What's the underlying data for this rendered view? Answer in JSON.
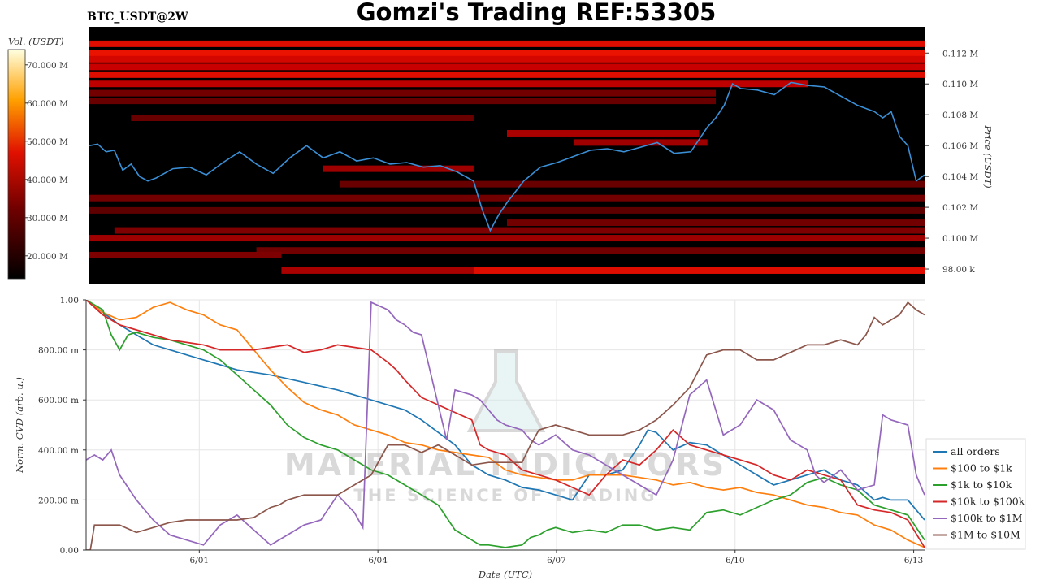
{
  "header": {
    "pair": "BTC_USDT@2W",
    "title": "Gomzi's Trading REF:53305"
  },
  "watermark": {
    "brand": "MATERIAL INDICATORS",
    "tagline": "THE SCIENCE OF TRADING"
  },
  "chart_data": [
    {
      "type": "heatmap",
      "name": "orderbook",
      "ylabel": "Price (USDT)",
      "ylim": [
        97000,
        113700
      ],
      "yticks": [
        98000,
        100000,
        102000,
        104000,
        106000,
        108000,
        110000,
        112000
      ],
      "ytick_labels": [
        "98.00 k",
        "0.100 M",
        "0.102 M",
        "0.104 M",
        "0.106 M",
        "0.108 M",
        "0.110 M",
        "0.112 M"
      ],
      "colorbar": {
        "label": "Vol. (USDT)",
        "range": [
          14000000,
          74000000
        ],
        "ticks": [
          20000000,
          30000000,
          40000000,
          50000000,
          60000000,
          70000000
        ],
        "tick_labels": [
          "20.000 M",
          "30.000 M",
          "40.000 M",
          "50.000 M",
          "60.000 M",
          "70.000 M"
        ]
      },
      "bands": [
        {
          "price": 112600,
          "t0": 0,
          "t1": 1,
          "intensity": 0.85
        },
        {
          "price": 112000,
          "t0": 0,
          "t1": 1,
          "intensity": 0.9
        },
        {
          "price": 111600,
          "t0": 0,
          "t1": 1,
          "intensity": 0.8
        },
        {
          "price": 111100,
          "t0": 0,
          "t1": 1,
          "intensity": 0.75
        },
        {
          "price": 110600,
          "t0": 0,
          "t1": 1,
          "intensity": 0.85
        },
        {
          "price": 110000,
          "t0": 0,
          "t1": 0.86,
          "intensity": 0.7
        },
        {
          "price": 109400,
          "t0": 0,
          "t1": 0.75,
          "intensity": 0.35
        },
        {
          "price": 108900,
          "t0": 0,
          "t1": 0.75,
          "intensity": 0.3
        },
        {
          "price": 107800,
          "t0": 0.05,
          "t1": 0.46,
          "intensity": 0.3
        },
        {
          "price": 106800,
          "t0": 0.5,
          "t1": 0.73,
          "intensity": 0.6
        },
        {
          "price": 106200,
          "t0": 0.58,
          "t1": 0.74,
          "intensity": 0.55
        },
        {
          "price": 104500,
          "t0": 0.28,
          "t1": 0.46,
          "intensity": 0.55
        },
        {
          "price": 103500,
          "t0": 0.3,
          "t1": 1,
          "intensity": 0.3
        },
        {
          "price": 102600,
          "t0": 0,
          "t1": 1,
          "intensity": 0.35
        },
        {
          "price": 101800,
          "t0": 0,
          "t1": 1,
          "intensity": 0.25
        },
        {
          "price": 101000,
          "t0": 0.5,
          "t1": 1,
          "intensity": 0.35
        },
        {
          "price": 100500,
          "t0": 0.03,
          "t1": 1,
          "intensity": 0.4
        },
        {
          "price": 100000,
          "t0": 0,
          "t1": 1,
          "intensity": 0.55
        },
        {
          "price": 99200,
          "t0": 0.2,
          "t1": 1,
          "intensity": 0.35
        },
        {
          "price": 98900,
          "t0": 0,
          "t1": 0.23,
          "intensity": 0.4
        },
        {
          "price": 97900,
          "t0": 0.23,
          "t1": 1,
          "intensity": 0.6
        },
        {
          "price": 97900,
          "t0": 0.46,
          "t1": 1,
          "intensity": 0.85
        }
      ],
      "price_series": {
        "name": "price",
        "t": [
          0,
          0.01,
          0.02,
          0.03,
          0.04,
          0.05,
          0.06,
          0.07,
          0.08,
          0.1,
          0.12,
          0.14,
          0.16,
          0.18,
          0.2,
          0.22,
          0.24,
          0.26,
          0.28,
          0.3,
          0.32,
          0.34,
          0.36,
          0.38,
          0.4,
          0.42,
          0.44,
          0.46,
          0.47,
          0.48,
          0.49,
          0.5,
          0.52,
          0.54,
          0.56,
          0.58,
          0.6,
          0.62,
          0.64,
          0.66,
          0.68,
          0.7,
          0.72,
          0.74,
          0.75,
          0.76,
          0.77,
          0.78,
          0.8,
          0.82,
          0.84,
          0.86,
          0.88,
          0.9,
          0.92,
          0.94,
          0.95,
          0.96,
          0.97,
          0.98,
          0.99,
          1.0
        ],
        "price": [
          106000,
          106100,
          105600,
          105700,
          104400,
          104800,
          104000,
          103700,
          103900,
          104500,
          104600,
          104100,
          104900,
          105600,
          104800,
          104200,
          105200,
          106000,
          105200,
          105600,
          105000,
          105200,
          104800,
          104900,
          104600,
          104700,
          104300,
          103700,
          101900,
          100500,
          101500,
          102300,
          103700,
          104600,
          104900,
          105300,
          105700,
          105800,
          105600,
          105900,
          106200,
          105500,
          105600,
          107200,
          107800,
          108600,
          110000,
          109700,
          109600,
          109300,
          110100,
          109900,
          109800,
          109200,
          108600,
          108200,
          107800,
          108200,
          106600,
          106000,
          103700,
          104100
        ]
      }
    },
    {
      "type": "line",
      "name": "cvd",
      "xlabel": "Date (UTC)",
      "ylabel": "Norm. CVD (arb. u.)",
      "xlim": [
        0,
        1
      ],
      "ylim": [
        0,
        1
      ],
      "xticks": [
        0.135,
        0.348,
        0.561,
        0.774,
        0.987
      ],
      "xtick_labels": [
        "6/01",
        "6/04",
        "6/07",
        "6/10",
        "6/13"
      ],
      "yticks": [
        0,
        0.2,
        0.4,
        0.6,
        0.8,
        1.0
      ],
      "ytick_labels": [
        "0.00",
        "200.00 m",
        "400.00 m",
        "600.00 m",
        "800.00 m",
        "1.00"
      ],
      "legend_position": "right",
      "series": [
        {
          "name": "all orders",
          "color": "#1f77b4",
          "x": [
            0,
            0.02,
            0.04,
            0.06,
            0.08,
            0.1,
            0.14,
            0.18,
            0.22,
            0.26,
            0.3,
            0.34,
            0.38,
            0.4,
            0.42,
            0.44,
            0.46,
            0.47,
            0.48,
            0.5,
            0.52,
            0.54,
            0.56,
            0.58,
            0.6,
            0.62,
            0.64,
            0.66,
            0.67,
            0.68,
            0.7,
            0.72,
            0.74,
            0.76,
            0.78,
            0.8,
            0.82,
            0.84,
            0.86,
            0.88,
            0.9,
            0.92,
            0.94,
            0.95,
            0.96,
            0.98,
            1.0
          ],
          "y": [
            1.0,
            0.95,
            0.9,
            0.86,
            0.82,
            0.8,
            0.76,
            0.72,
            0.7,
            0.67,
            0.64,
            0.6,
            0.56,
            0.52,
            0.47,
            0.42,
            0.34,
            0.32,
            0.3,
            0.28,
            0.25,
            0.24,
            0.22,
            0.2,
            0.3,
            0.3,
            0.32,
            0.42,
            0.48,
            0.47,
            0.4,
            0.43,
            0.42,
            0.38,
            0.34,
            0.3,
            0.26,
            0.28,
            0.3,
            0.32,
            0.28,
            0.26,
            0.2,
            0.21,
            0.2,
            0.2,
            0.12
          ]
        },
        {
          "name": "$100 to $1k",
          "color": "#ff7f0e",
          "x": [
            0,
            0.02,
            0.04,
            0.06,
            0.08,
            0.1,
            0.12,
            0.14,
            0.16,
            0.18,
            0.2,
            0.22,
            0.24,
            0.26,
            0.28,
            0.3,
            0.32,
            0.34,
            0.36,
            0.38,
            0.4,
            0.42,
            0.44,
            0.46,
            0.48,
            0.5,
            0.52,
            0.54,
            0.56,
            0.58,
            0.6,
            0.62,
            0.64,
            0.66,
            0.68,
            0.7,
            0.72,
            0.74,
            0.76,
            0.78,
            0.8,
            0.82,
            0.84,
            0.86,
            0.88,
            0.9,
            0.92,
            0.94,
            0.96,
            0.98,
            1.0
          ],
          "y": [
            1.0,
            0.95,
            0.92,
            0.93,
            0.97,
            0.99,
            0.96,
            0.94,
            0.9,
            0.88,
            0.8,
            0.72,
            0.65,
            0.59,
            0.56,
            0.54,
            0.5,
            0.48,
            0.46,
            0.43,
            0.42,
            0.4,
            0.39,
            0.38,
            0.37,
            0.32,
            0.3,
            0.29,
            0.28,
            0.28,
            0.3,
            0.3,
            0.3,
            0.29,
            0.28,
            0.26,
            0.27,
            0.25,
            0.24,
            0.25,
            0.23,
            0.22,
            0.2,
            0.18,
            0.17,
            0.15,
            0.14,
            0.1,
            0.08,
            0.04,
            0.01
          ]
        },
        {
          "name": "$1k to $10k",
          "color": "#2ca02c",
          "x": [
            0,
            0.02,
            0.03,
            0.04,
            0.05,
            0.06,
            0.08,
            0.1,
            0.12,
            0.14,
            0.16,
            0.18,
            0.2,
            0.22,
            0.24,
            0.26,
            0.28,
            0.3,
            0.32,
            0.34,
            0.36,
            0.38,
            0.4,
            0.42,
            0.44,
            0.46,
            0.47,
            0.48,
            0.5,
            0.52,
            0.53,
            0.54,
            0.55,
            0.56,
            0.58,
            0.6,
            0.62,
            0.64,
            0.66,
            0.68,
            0.7,
            0.72,
            0.74,
            0.76,
            0.78,
            0.8,
            0.82,
            0.84,
            0.86,
            0.88,
            0.9,
            0.92,
            0.94,
            0.96,
            0.98,
            1.0
          ],
          "y": [
            1.0,
            0.96,
            0.86,
            0.8,
            0.86,
            0.87,
            0.85,
            0.84,
            0.82,
            0.8,
            0.76,
            0.7,
            0.64,
            0.58,
            0.5,
            0.45,
            0.42,
            0.4,
            0.36,
            0.32,
            0.3,
            0.26,
            0.22,
            0.18,
            0.08,
            0.04,
            0.02,
            0.02,
            0.01,
            0.02,
            0.05,
            0.06,
            0.08,
            0.09,
            0.07,
            0.08,
            0.07,
            0.1,
            0.1,
            0.08,
            0.09,
            0.08,
            0.15,
            0.16,
            0.14,
            0.17,
            0.2,
            0.22,
            0.27,
            0.29,
            0.26,
            0.24,
            0.18,
            0.16,
            0.14,
            0.04
          ]
        },
        {
          "name": "$10k to $100k",
          "color": "#d62728",
          "x": [
            0,
            0.02,
            0.04,
            0.06,
            0.08,
            0.1,
            0.12,
            0.14,
            0.16,
            0.18,
            0.2,
            0.22,
            0.24,
            0.26,
            0.28,
            0.3,
            0.32,
            0.34,
            0.36,
            0.37,
            0.38,
            0.4,
            0.42,
            0.44,
            0.46,
            0.47,
            0.48,
            0.5,
            0.52,
            0.54,
            0.56,
            0.58,
            0.6,
            0.62,
            0.64,
            0.66,
            0.68,
            0.7,
            0.72,
            0.74,
            0.76,
            0.78,
            0.8,
            0.82,
            0.84,
            0.86,
            0.88,
            0.9,
            0.92,
            0.94,
            0.96,
            0.98,
            1.0
          ],
          "y": [
            1.0,
            0.94,
            0.9,
            0.88,
            0.86,
            0.84,
            0.83,
            0.82,
            0.8,
            0.8,
            0.8,
            0.81,
            0.82,
            0.79,
            0.8,
            0.82,
            0.81,
            0.8,
            0.75,
            0.72,
            0.68,
            0.61,
            0.58,
            0.55,
            0.52,
            0.42,
            0.4,
            0.38,
            0.32,
            0.3,
            0.28,
            0.25,
            0.22,
            0.3,
            0.36,
            0.34,
            0.4,
            0.48,
            0.42,
            0.4,
            0.38,
            0.36,
            0.34,
            0.3,
            0.28,
            0.32,
            0.3,
            0.28,
            0.18,
            0.16,
            0.15,
            0.12,
            0.01
          ]
        },
        {
          "name": "$100k to $1M",
          "color": "#9467bd",
          "x": [
            0,
            0.01,
            0.02,
            0.03,
            0.04,
            0.05,
            0.06,
            0.08,
            0.1,
            0.12,
            0.14,
            0.16,
            0.18,
            0.2,
            0.22,
            0.24,
            0.26,
            0.28,
            0.3,
            0.32,
            0.33,
            0.34,
            0.36,
            0.37,
            0.38,
            0.39,
            0.4,
            0.42,
            0.43,
            0.44,
            0.46,
            0.47,
            0.48,
            0.49,
            0.5,
            0.52,
            0.53,
            0.54,
            0.56,
            0.58,
            0.6,
            0.62,
            0.64,
            0.66,
            0.68,
            0.7,
            0.72,
            0.74,
            0.76,
            0.78,
            0.8,
            0.82,
            0.84,
            0.86,
            0.87,
            0.88,
            0.9,
            0.92,
            0.94,
            0.95,
            0.96,
            0.98,
            0.99,
            1.0
          ],
          "y": [
            0.36,
            0.38,
            0.36,
            0.4,
            0.3,
            0.25,
            0.2,
            0.12,
            0.06,
            0.04,
            0.02,
            0.1,
            0.14,
            0.08,
            0.02,
            0.06,
            0.1,
            0.12,
            0.22,
            0.15,
            0.09,
            0.99,
            0.96,
            0.92,
            0.9,
            0.87,
            0.86,
            0.58,
            0.44,
            0.64,
            0.62,
            0.6,
            0.56,
            0.52,
            0.5,
            0.48,
            0.44,
            0.42,
            0.46,
            0.4,
            0.38,
            0.34,
            0.3,
            0.26,
            0.22,
            0.36,
            0.62,
            0.68,
            0.46,
            0.5,
            0.6,
            0.56,
            0.44,
            0.4,
            0.3,
            0.27,
            0.32,
            0.24,
            0.26,
            0.54,
            0.52,
            0.5,
            0.3,
            0.22
          ]
        },
        {
          "name": "$1M to $10M",
          "color": "#8c564b",
          "x": [
            0,
            0.005,
            0.01,
            0.02,
            0.04,
            0.06,
            0.08,
            0.1,
            0.12,
            0.14,
            0.16,
            0.18,
            0.2,
            0.22,
            0.23,
            0.24,
            0.26,
            0.28,
            0.3,
            0.32,
            0.34,
            0.36,
            0.38,
            0.4,
            0.42,
            0.44,
            0.46,
            0.48,
            0.5,
            0.52,
            0.53,
            0.54,
            0.56,
            0.58,
            0.6,
            0.62,
            0.64,
            0.66,
            0.68,
            0.7,
            0.72,
            0.74,
            0.76,
            0.78,
            0.8,
            0.82,
            0.84,
            0.86,
            0.88,
            0.9,
            0.92,
            0.93,
            0.94,
            0.95,
            0.96,
            0.97,
            0.98,
            0.99,
            1.0
          ],
          "y": [
            0.0,
            0.0,
            0.1,
            0.1,
            0.1,
            0.07,
            0.09,
            0.11,
            0.12,
            0.12,
            0.12,
            0.12,
            0.13,
            0.17,
            0.18,
            0.2,
            0.22,
            0.22,
            0.22,
            0.26,
            0.3,
            0.42,
            0.42,
            0.39,
            0.42,
            0.38,
            0.34,
            0.35,
            0.35,
            0.35,
            0.42,
            0.48,
            0.5,
            0.48,
            0.46,
            0.46,
            0.46,
            0.48,
            0.52,
            0.58,
            0.65,
            0.78,
            0.8,
            0.8,
            0.76,
            0.76,
            0.79,
            0.82,
            0.82,
            0.84,
            0.82,
            0.86,
            0.93,
            0.9,
            0.92,
            0.94,
            0.99,
            0.96,
            0.94
          ]
        }
      ]
    }
  ]
}
